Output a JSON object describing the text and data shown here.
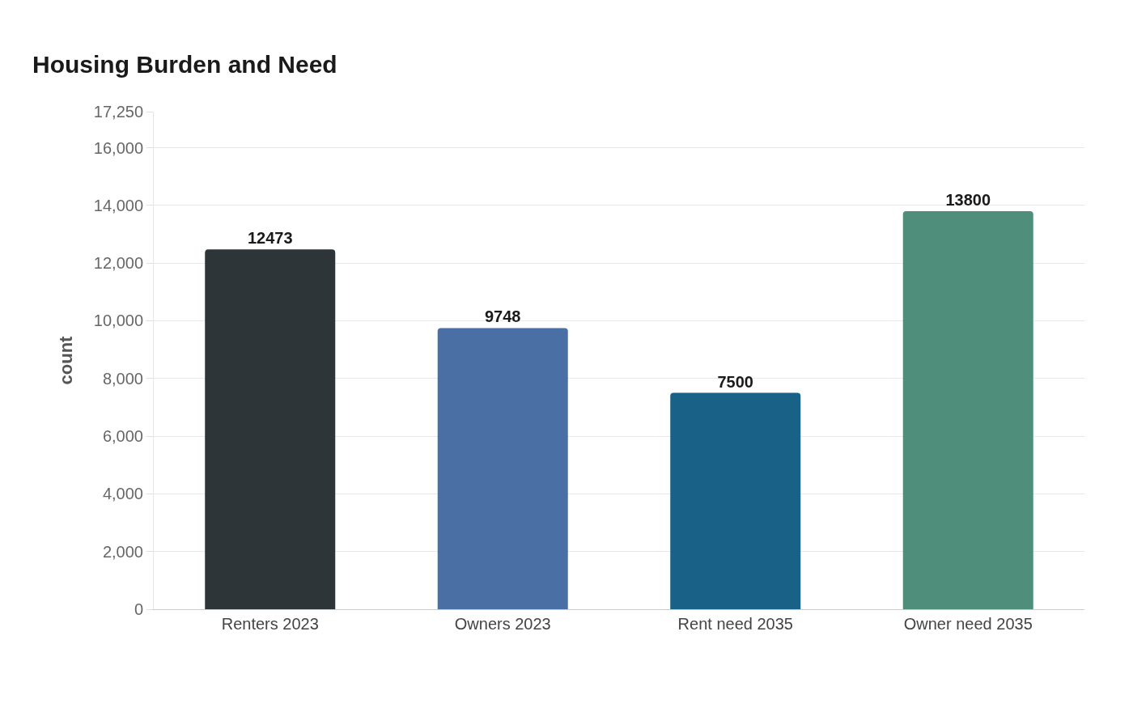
{
  "chart_data": {
    "type": "bar",
    "title": "Housing Burden and Need",
    "ylabel": "count",
    "categories": [
      "Renters 2023",
      "Owners 2023",
      "Rent need 2035",
      "Owner need 2035"
    ],
    "values": [
      12473,
      9748,
      7500,
      13800
    ],
    "colors": [
      "#2d3538",
      "#4a6fa5",
      "#196187",
      "#4e8e7b"
    ],
    "ylim": [
      0,
      17250
    ],
    "yticks": [
      0,
      {
        "value": 2000,
        "label": "2,000"
      },
      {
        "value": 4000,
        "label": "4,000"
      },
      {
        "value": 6000,
        "label": "6,000"
      },
      {
        "value": 8000,
        "label": "8,000"
      },
      {
        "value": 10000,
        "label": "10,000"
      },
      {
        "value": 12000,
        "label": "12,000"
      },
      {
        "value": 14000,
        "label": "14,000"
      },
      {
        "value": 16000,
        "label": "16,000"
      },
      {
        "value": 17250,
        "label": "17,250"
      }
    ],
    "grid": "y",
    "data_labels": true
  }
}
